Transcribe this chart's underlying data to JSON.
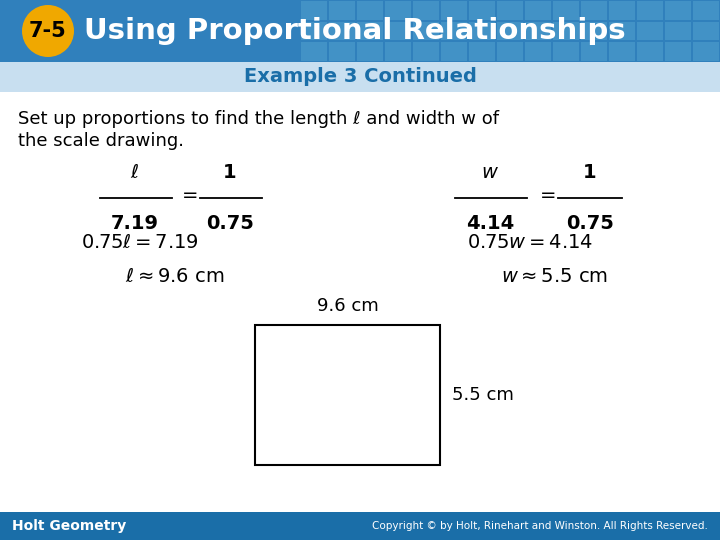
{
  "title": "Using Proportional Relationships",
  "title_number": "7-5",
  "subtitle": "Example 3 Continued",
  "header_bg": "#3080BC",
  "header_grid_color": "#5AAAD0",
  "badge_color": "#F0A800",
  "subtitle_color": "#1A6EA8",
  "footer_bg": "#1A6EA8",
  "white": "#FFFFFF",
  "black": "#000000",
  "footer_text_left": "Holt Geometry",
  "footer_text_right": "Copyright © by Holt, Rinehart and Winston. All Rights Reserved."
}
